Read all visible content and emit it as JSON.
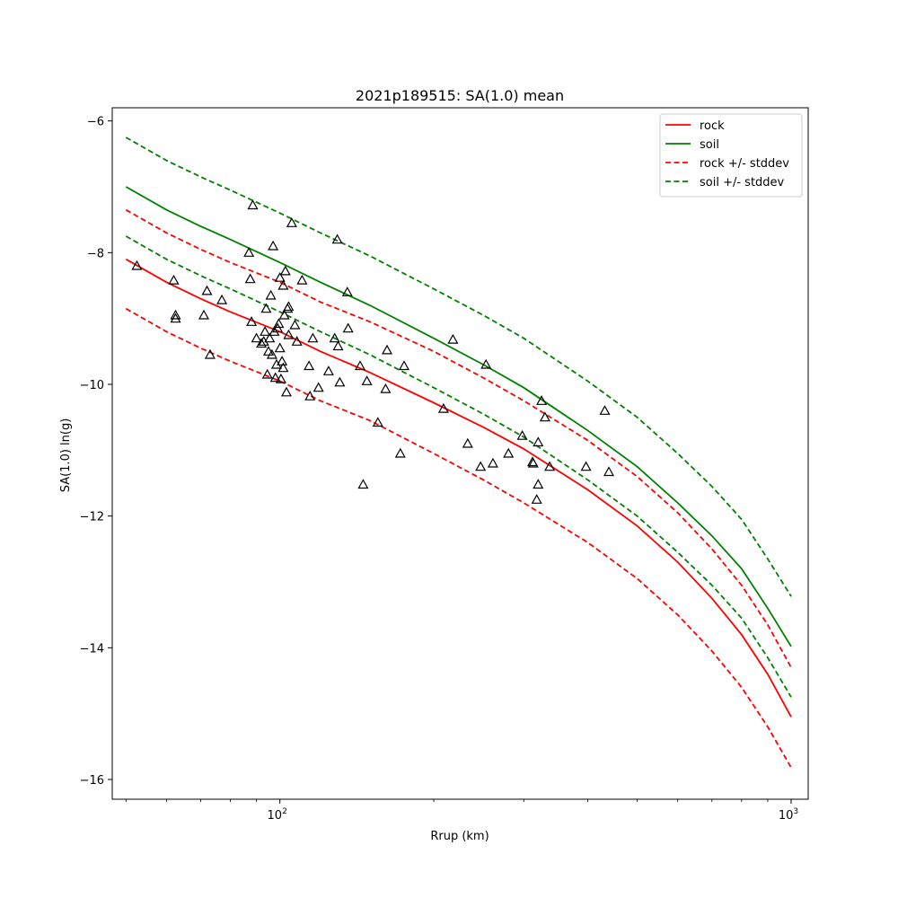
{
  "chart_data": {
    "type": "line",
    "title": "2021p189515: SA(1.0) mean",
    "xlabel": "Rrup (km)",
    "ylabel": "SA(1.0) ln(g)",
    "x_scale": "log",
    "xlim": [
      47,
      1080
    ],
    "ylim": [
      -16.3,
      -5.8
    ],
    "x_ticks": [
      100,
      1000
    ],
    "x_tick_labels": [
      "10",
      "10"
    ],
    "x_tick_exps": [
      "2",
      "3"
    ],
    "y_ticks": [
      -6,
      -8,
      -10,
      -12,
      -14,
      -16
    ],
    "y_tick_labels": [
      "−6",
      "−8",
      "−10",
      "−12",
      "−14",
      "−16"
    ],
    "legend_position": "top-right",
    "grid": false,
    "series": [
      {
        "name": "rock",
        "color": "#ff0000",
        "style": "solid",
        "x": [
          50,
          60,
          70,
          80,
          100,
          120,
          150,
          200,
          250,
          300,
          400,
          500,
          600,
          700,
          800,
          900,
          1000
        ],
        "y": [
          -8.1,
          -8.45,
          -8.7,
          -8.9,
          -9.2,
          -9.5,
          -9.82,
          -10.28,
          -10.65,
          -10.98,
          -11.6,
          -12.15,
          -12.7,
          -13.25,
          -13.8,
          -14.4,
          -15.05
        ]
      },
      {
        "name": "soil",
        "color": "#008000",
        "style": "solid",
        "x": [
          50,
          60,
          70,
          80,
          100,
          120,
          150,
          200,
          250,
          300,
          400,
          500,
          600,
          700,
          800,
          900,
          1000
        ],
        "y": [
          -7.0,
          -7.35,
          -7.6,
          -7.8,
          -8.15,
          -8.45,
          -8.8,
          -9.3,
          -9.7,
          -10.05,
          -10.7,
          -11.25,
          -11.8,
          -12.3,
          -12.8,
          -13.4,
          -13.98
        ]
      },
      {
        "name": "rock +/- stddev",
        "color": "#ff0000",
        "style": "dashed",
        "x": [
          50,
          60,
          70,
          80,
          100,
          120,
          150,
          200,
          250,
          300,
          400,
          500,
          600,
          700,
          800,
          900,
          1000
        ],
        "y": [
          -7.35,
          -7.7,
          -7.95,
          -8.15,
          -8.45,
          -8.75,
          -9.05,
          -9.5,
          -9.9,
          -10.25,
          -10.85,
          -11.4,
          -11.95,
          -12.5,
          -13.05,
          -13.65,
          -14.3
        ]
      },
      {
        "name": "",
        "color": "#ff0000",
        "style": "dashed",
        "x": [
          50,
          60,
          70,
          80,
          100,
          120,
          150,
          200,
          250,
          300,
          400,
          500,
          600,
          700,
          800,
          900,
          1000
        ],
        "y": [
          -8.85,
          -9.2,
          -9.45,
          -9.65,
          -9.95,
          -10.25,
          -10.55,
          -11.05,
          -11.45,
          -11.8,
          -12.4,
          -12.95,
          -13.5,
          -14.05,
          -14.6,
          -15.2,
          -15.82
        ]
      },
      {
        "name": "soil +/- stddev",
        "color": "#008000",
        "style": "dashed",
        "x": [
          50,
          60,
          70,
          80,
          100,
          120,
          150,
          200,
          250,
          300,
          400,
          500,
          600,
          700,
          800,
          900,
          1000
        ],
        "y": [
          -6.25,
          -6.6,
          -6.85,
          -7.05,
          -7.4,
          -7.7,
          -8.05,
          -8.55,
          -8.95,
          -9.3,
          -9.95,
          -10.5,
          -11.05,
          -11.55,
          -12.05,
          -12.65,
          -13.22
        ]
      },
      {
        "name": "",
        "color": "#008000",
        "style": "dashed",
        "x": [
          50,
          60,
          70,
          80,
          100,
          120,
          150,
          200,
          250,
          300,
          400,
          500,
          600,
          700,
          800,
          900,
          1000
        ],
        "y": [
          -7.75,
          -8.1,
          -8.35,
          -8.55,
          -8.9,
          -9.2,
          -9.55,
          -10.05,
          -10.45,
          -10.8,
          -11.45,
          -12.0,
          -12.55,
          -13.05,
          -13.55,
          -14.15,
          -14.75
        ]
      }
    ],
    "observations": {
      "marker": "triangle",
      "color": "#000000",
      "points": [
        [
          52.5,
          -8.2
        ],
        [
          62,
          -8.42
        ],
        [
          62.5,
          -8.95
        ],
        [
          62.5,
          -9.0
        ],
        [
          71,
          -8.95
        ],
        [
          72,
          -8.58
        ],
        [
          73,
          -9.55
        ],
        [
          77,
          -8.72
        ],
        [
          87,
          -8.0
        ],
        [
          87.5,
          -8.4
        ],
        [
          88,
          -9.05
        ],
        [
          88.5,
          -7.28
        ],
        [
          90,
          -9.3
        ],
        [
          92,
          -9.38
        ],
        [
          93,
          -9.35
        ],
        [
          93.5,
          -9.2
        ],
        [
          94,
          -8.85
        ],
        [
          94.5,
          -9.85
        ],
        [
          95,
          -9.5
        ],
        [
          95.5,
          -9.3
        ],
        [
          96,
          -8.65
        ],
        [
          96.5,
          -9.55
        ],
        [
          97,
          -7.9
        ],
        [
          97.5,
          -9.2
        ],
        [
          98,
          -9.9
        ],
        [
          98.5,
          -9.7
        ],
        [
          99,
          -9.15
        ],
        [
          99.5,
          -9.08
        ],
        [
          100,
          -9.45
        ],
        [
          100,
          -8.38
        ],
        [
          100.5,
          -9.92
        ],
        [
          101,
          -9.65
        ],
        [
          101.5,
          -9.75
        ],
        [
          101.5,
          -8.5
        ],
        [
          102,
          -8.95
        ],
        [
          102.5,
          -8.28
        ],
        [
          103,
          -10.12
        ],
        [
          103.5,
          -8.85
        ],
        [
          104,
          -8.82
        ],
        [
          104,
          -9.25
        ],
        [
          105.5,
          -7.55
        ],
        [
          107,
          -9.1
        ],
        [
          108,
          -9.35
        ],
        [
          110.5,
          -8.42
        ],
        [
          114,
          -9.72
        ],
        [
          114.5,
          -10.18
        ],
        [
          116,
          -9.3
        ],
        [
          119,
          -10.05
        ],
        [
          124.5,
          -9.8
        ],
        [
          128,
          -9.3
        ],
        [
          129.5,
          -7.8
        ],
        [
          130,
          -9.42
        ],
        [
          131,
          -9.97
        ],
        [
          135.5,
          -8.6
        ],
        [
          136,
          -9.15
        ],
        [
          143.5,
          -9.72
        ],
        [
          145.5,
          -11.52
        ],
        [
          148,
          -9.95
        ],
        [
          155.5,
          -10.58
        ],
        [
          161,
          -10.07
        ],
        [
          162,
          -9.48
        ],
        [
          172,
          -11.05
        ],
        [
          175,
          -9.72
        ],
        [
          209,
          -10.37
        ],
        [
          218,
          -9.32
        ],
        [
          233,
          -10.9
        ],
        [
          247,
          -11.25
        ],
        [
          253,
          -9.7
        ],
        [
          261,
          -11.2
        ],
        [
          280,
          -11.05
        ],
        [
          298,
          -10.78
        ],
        [
          312,
          -11.18
        ],
        [
          313,
          -11.2
        ],
        [
          318,
          -11.75
        ],
        [
          320,
          -11.52
        ],
        [
          320,
          -10.88
        ],
        [
          325,
          -10.25
        ],
        [
          330,
          -10.5
        ],
        [
          337,
          -11.25
        ],
        [
          397,
          -11.25
        ],
        [
          432,
          -10.4
        ],
        [
          440,
          -11.33
        ]
      ]
    }
  }
}
